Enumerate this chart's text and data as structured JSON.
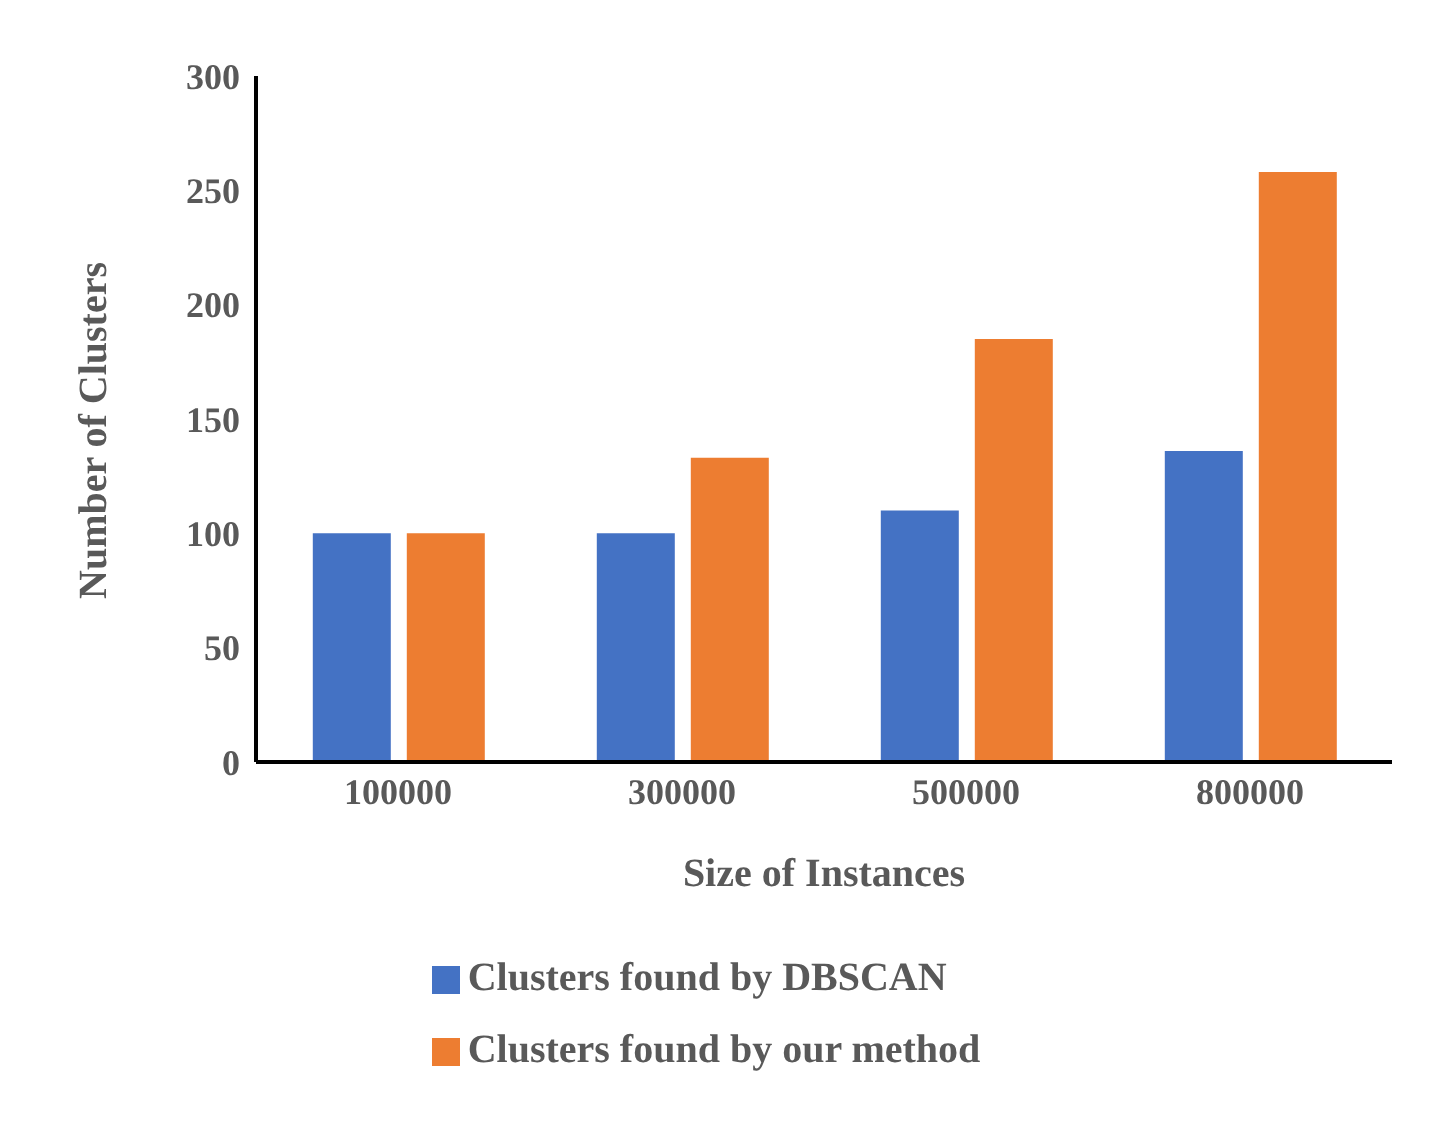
{
  "chart_data": {
    "type": "bar",
    "xlabel": "Size of Instances",
    "ylabel": "Number of Clusters",
    "categories": [
      "100000",
      "300000",
      "500000",
      "800000"
    ],
    "series": [
      {
        "name": "Clusters found by DBSCAN",
        "color": "#4472c4",
        "values": [
          100,
          100,
          110,
          136
        ]
      },
      {
        "name": "Clusters found by our method",
        "color": "#ed7d31",
        "values": [
          100,
          133,
          185,
          258
        ]
      }
    ],
    "ylim": [
      0,
      300
    ],
    "yticks": [
      0,
      50,
      100,
      150,
      200,
      250,
      300
    ],
    "grid": false,
    "legend": "bottom"
  }
}
